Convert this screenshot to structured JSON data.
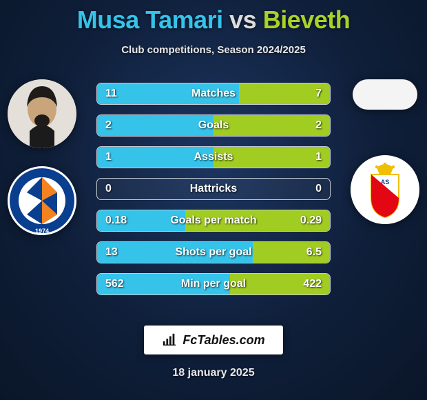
{
  "title": {
    "player1": "Musa Tamari",
    "vs": "vs",
    "player2": "Bieveth"
  },
  "subtitle": "Club competitions, Season 2024/2025",
  "colors": {
    "p1_fill": "#35c3ea",
    "p2_fill": "#a1cc22",
    "p1_title": "#35c3ea",
    "p2_title": "#a8d22a",
    "row_border": "rgba(255,255,255,0.75)"
  },
  "player1": {
    "name": "Musa Tamari",
    "has_photo": true,
    "club_name": "Montpellier HSC",
    "club_primary": "#0a3e8f",
    "club_secondary": "#f58220",
    "club_year": "1974"
  },
  "player2": {
    "name": "Bieveth",
    "has_photo": false,
    "club_name": "AS Monaco",
    "club_primary": "#e30613",
    "club_secondary": "#ffffff",
    "club_accent": "#f9c800"
  },
  "stats": [
    {
      "label": "Matches",
      "v1": "11",
      "v2": "7",
      "p1_pct": 61,
      "p2_pct": 39
    },
    {
      "label": "Goals",
      "v1": "2",
      "v2": "2",
      "p1_pct": 50,
      "p2_pct": 50
    },
    {
      "label": "Assists",
      "v1": "1",
      "v2": "1",
      "p1_pct": 50,
      "p2_pct": 50
    },
    {
      "label": "Hattricks",
      "v1": "0",
      "v2": "0",
      "p1_pct": 0,
      "p2_pct": 0
    },
    {
      "label": "Goals per match",
      "v1": "0.18",
      "v2": "0.29",
      "p1_pct": 38,
      "p2_pct": 62
    },
    {
      "label": "Shots per goal",
      "v1": "13",
      "v2": "6.5",
      "p1_pct": 67,
      "p2_pct": 33
    },
    {
      "label": "Min per goal",
      "v1": "562",
      "v2": "422",
      "p1_pct": 57,
      "p2_pct": 43
    }
  ],
  "footer": {
    "site": "FcTables.com",
    "date": "18 january 2025"
  }
}
